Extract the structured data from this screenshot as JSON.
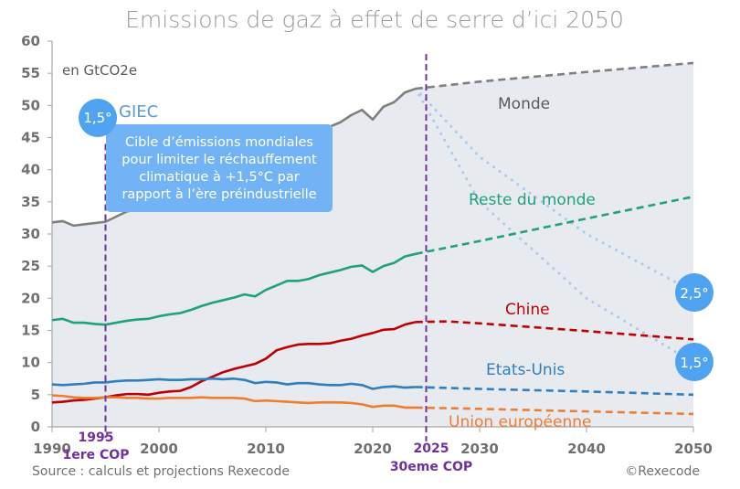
{
  "chart_data": {
    "type": "line",
    "title": "Emissions de gaz à effet de serre d’ici 2050",
    "unit_label": "en GtCO2e",
    "xlabel": "",
    "ylabel": "",
    "xlim": [
      1990,
      2050
    ],
    "ylim": [
      0,
      60
    ],
    "x_ticks": [
      1990,
      2000,
      2010,
      2020,
      2030,
      2040,
      2050
    ],
    "y_ticks": [
      0,
      5,
      10,
      15,
      20,
      25,
      30,
      35,
      40,
      45,
      50,
      55,
      60
    ],
    "grid": false,
    "projection_start": 2024,
    "series": [
      {
        "name": "Monde",
        "color": "#7f7f7f",
        "historical": {
          "x": [
            1990,
            1991,
            1992,
            1993,
            1994,
            1995,
            1996,
            1997,
            1998,
            1999,
            2000,
            2001,
            2002,
            2003,
            2004,
            2005,
            2006,
            2007,
            2008,
            2009,
            2010,
            2011,
            2012,
            2013,
            2014,
            2015,
            2016,
            2017,
            2018,
            2019,
            2020,
            2021,
            2022,
            2023,
            2024
          ],
          "y": [
            31.8,
            32.0,
            31.3,
            31.5,
            31.7,
            31.9,
            32.7,
            33.5,
            33.8,
            33.8,
            34.5,
            35.0,
            35.6,
            36.7,
            38.0,
            39.3,
            40.6,
            41.5,
            42.2,
            42.0,
            43.6,
            44.7,
            45.3,
            45.9,
            46.4,
            46.4,
            46.7,
            47.4,
            48.5,
            49.3,
            47.8,
            49.8,
            50.5,
            52.0,
            52.6
          ]
        },
        "projection": {
          "x": [
            2024,
            2030,
            2040,
            2050
          ],
          "y": [
            52.6,
            53.7,
            55.2,
            56.6
          ]
        }
      },
      {
        "name": "Reste du monde",
        "color": "#1fa07e",
        "historical": {
          "x": [
            1990,
            1991,
            1992,
            1993,
            1994,
            1995,
            1996,
            1997,
            1998,
            1999,
            2000,
            2001,
            2002,
            2003,
            2004,
            2005,
            2006,
            2007,
            2008,
            2009,
            2010,
            2011,
            2012,
            2013,
            2014,
            2015,
            2016,
            2017,
            2018,
            2019,
            2020,
            2021,
            2022,
            2023,
            2024
          ],
          "y": [
            16.6,
            16.8,
            16.2,
            16.2,
            16.0,
            15.9,
            16.2,
            16.5,
            16.7,
            16.8,
            17.2,
            17.5,
            17.7,
            18.2,
            18.8,
            19.3,
            19.7,
            20.1,
            20.6,
            20.3,
            21.3,
            22.0,
            22.7,
            22.7,
            23.0,
            23.6,
            24.0,
            24.4,
            24.9,
            25.1,
            24.1,
            25.0,
            25.5,
            26.5,
            26.9
          ]
        },
        "projection": {
          "x": [
            2024,
            2030,
            2040,
            2050
          ],
          "y": [
            26.9,
            28.9,
            32.4,
            35.8
          ]
        }
      },
      {
        "name": "Chine",
        "color": "#c00000",
        "historical": {
          "x": [
            1990,
            1991,
            1992,
            1993,
            1994,
            1995,
            1996,
            1997,
            1998,
            1999,
            2000,
            2001,
            2002,
            2003,
            2004,
            2005,
            2006,
            2007,
            2008,
            2009,
            2010,
            2011,
            2012,
            2013,
            2014,
            2015,
            2016,
            2017,
            2018,
            2019,
            2020,
            2021,
            2022,
            2023,
            2024
          ],
          "y": [
            3.8,
            3.9,
            4.1,
            4.2,
            4.4,
            4.6,
            4.9,
            5.1,
            5.1,
            5.0,
            5.3,
            5.5,
            5.6,
            6.2,
            7.1,
            7.8,
            8.5,
            9.0,
            9.4,
            9.8,
            10.6,
            11.9,
            12.4,
            12.8,
            12.9,
            12.9,
            13.0,
            13.4,
            13.7,
            14.2,
            14.6,
            15.1,
            15.2,
            15.9,
            16.3
          ]
        },
        "projection": {
          "x": [
            2024,
            2027,
            2030,
            2040,
            2050
          ],
          "y": [
            16.3,
            16.4,
            16.1,
            14.9,
            13.6
          ]
        }
      },
      {
        "name": "Etats-Unis",
        "color": "#2f7ec0",
        "historical": {
          "x": [
            1990,
            1991,
            1992,
            1993,
            1994,
            1995,
            1996,
            1997,
            1998,
            1999,
            2000,
            2001,
            2002,
            2003,
            2004,
            2005,
            2006,
            2007,
            2008,
            2009,
            2010,
            2011,
            2012,
            2013,
            2014,
            2015,
            2016,
            2017,
            2018,
            2019,
            2020,
            2021,
            2022,
            2023,
            2024
          ],
          "y": [
            6.6,
            6.5,
            6.6,
            6.7,
            6.9,
            6.9,
            7.1,
            7.2,
            7.2,
            7.3,
            7.4,
            7.3,
            7.3,
            7.4,
            7.4,
            7.5,
            7.4,
            7.5,
            7.3,
            6.8,
            7.0,
            6.9,
            6.6,
            6.8,
            6.8,
            6.6,
            6.5,
            6.5,
            6.7,
            6.5,
            5.9,
            6.2,
            6.3,
            6.1,
            6.2
          ]
        },
        "projection": {
          "x": [
            2024,
            2030,
            2040,
            2050
          ],
          "y": [
            6.2,
            5.9,
            5.5,
            5.0
          ]
        }
      },
      {
        "name": "Union européenne",
        "color": "#ed7d31",
        "historical": {
          "x": [
            1990,
            1991,
            1992,
            1993,
            1994,
            1995,
            1996,
            1997,
            1998,
            1999,
            2000,
            2001,
            2002,
            2003,
            2004,
            2005,
            2006,
            2007,
            2008,
            2009,
            2010,
            2011,
            2012,
            2013,
            2014,
            2015,
            2016,
            2017,
            2018,
            2019,
            2020,
            2021,
            2022,
            2023,
            2024
          ],
          "y": [
            4.9,
            4.8,
            4.6,
            4.5,
            4.5,
            4.6,
            4.6,
            4.5,
            4.5,
            4.4,
            4.4,
            4.5,
            4.5,
            4.5,
            4.6,
            4.5,
            4.5,
            4.5,
            4.4,
            4.0,
            4.1,
            4.0,
            3.9,
            3.8,
            3.7,
            3.8,
            3.8,
            3.8,
            3.7,
            3.5,
            3.1,
            3.3,
            3.3,
            3.0,
            3.0
          ]
        },
        "projection": {
          "x": [
            2024,
            2030,
            2040,
            2050
          ],
          "y": [
            3.0,
            2.8,
            2.4,
            2.0
          ]
        }
      }
    ],
    "scenarios": [
      {
        "name": "2,5°",
        "color": "#a9c9ee",
        "x": [
          2024,
          2030,
          2040,
          2050
        ],
        "y": [
          52.6,
          42.0,
          30.0,
          21.0
        ]
      },
      {
        "name": "1,5°",
        "color": "#a9c9ee",
        "x": [
          2024,
          2030,
          2040,
          2050
        ],
        "y": [
          52.6,
          35.0,
          20.0,
          10.0
        ]
      }
    ],
    "cop_markers": [
      {
        "year": 1995,
        "label_year": "1995",
        "label_event": "1ere COP",
        "color": "#7030a0"
      },
      {
        "year": 2025,
        "label_year": "2025",
        "label_event": "30eme COP",
        "color": "#7030a0"
      }
    ],
    "annotations": {
      "giec_badge": "1,5°",
      "giec_label": "GIEC",
      "giec_callout": [
        "Cible d’émissions mondiales",
        "pour limiter le réchauffement",
        "climatique à +1,5°C par",
        "rapport à l’ère préindustrielle"
      ],
      "badge_25": "2,5°",
      "badge_15": "1,5°"
    },
    "source": "Source : calculs et projections Rexecode",
    "copyright": "©Rexecode",
    "colors": {
      "plot_bg": "#e7ebf0",
      "axis": "#a6a6a6",
      "badge": "#4fa3f0",
      "callout": "#72b3f5"
    }
  }
}
